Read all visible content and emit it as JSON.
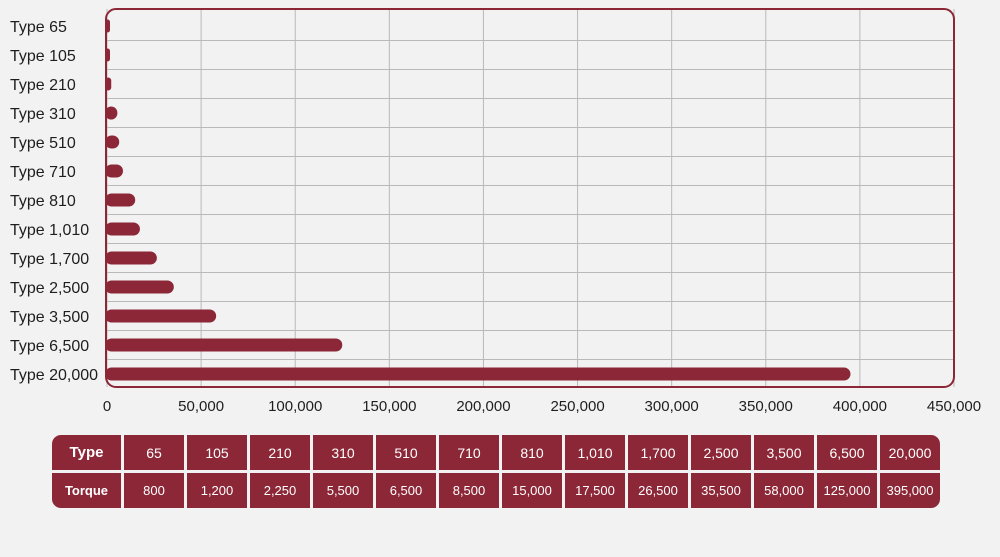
{
  "chart_data": {
    "type": "bar",
    "orientation": "horizontal",
    "categories": [
      "Type 65",
      "Type 105",
      "Type 210",
      "Type 310",
      "Type 510",
      "Type 710",
      "Type 810",
      "Type 1,010",
      "Type 1,700",
      "Type 2,500",
      "Type 3,500",
      "Type 6,500",
      "Type 20,000"
    ],
    "values": [
      800,
      1200,
      2250,
      5500,
      6500,
      8500,
      15000,
      17500,
      26500,
      35500,
      58000,
      125000,
      395000
    ],
    "xlim": [
      0,
      450000
    ],
    "xticks": [
      0,
      50000,
      100000,
      150000,
      200000,
      250000,
      300000,
      350000,
      400000,
      450000
    ],
    "xtick_labels": [
      "0",
      "50,000",
      "100,000",
      "150,000",
      "200,000",
      "250,000",
      "300,000",
      "350,000",
      "400,000",
      "450,000"
    ],
    "grid": true,
    "bar_color": "#8c2738",
    "frame_color": "#8c2738",
    "title": "",
    "xlabel": "",
    "ylabel": ""
  },
  "table": {
    "header_type": "Type",
    "header_torque": "Torque",
    "types": [
      "65",
      "105",
      "210",
      "310",
      "510",
      "710",
      "810",
      "1,010",
      "1,700",
      "2,500",
      "3,500",
      "6,500",
      "20,000"
    ],
    "torques": [
      "800",
      "1,200",
      "2,250",
      "5,500",
      "6,500",
      "8,500",
      "15,000",
      "17,500",
      "26,500",
      "35,500",
      "58,000",
      "125,000",
      "395,000"
    ]
  }
}
